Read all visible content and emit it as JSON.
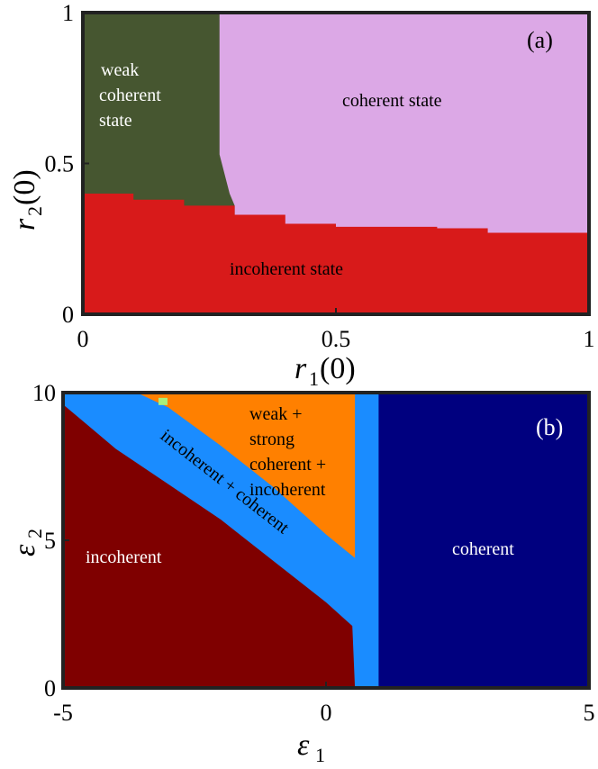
{
  "chart_data": [
    {
      "type": "heatmap",
      "panel_label": "(a)",
      "xlabel": "r",
      "xlabel_sub": "1",
      "xlabel_arg": "(0)",
      "ylabel": "r",
      "ylabel_sub": "2",
      "ylabel_arg": "(0)",
      "xlim": [
        0,
        1
      ],
      "ylim": [
        0,
        1
      ],
      "xticks": [
        "0",
        "0.5",
        "1"
      ],
      "yticks": [
        "0",
        "0.5",
        "1"
      ],
      "colors": {
        "weak": "#465630",
        "coherent": "#dca8e6",
        "incoherent": "#d81a1a"
      },
      "weak_coherent_boundary": [
        [
          0.27,
          1.0
        ],
        [
          0.27,
          0.53
        ],
        [
          0.29,
          0.4
        ],
        [
          0.3,
          0.36
        ]
      ],
      "incoherent_boundary": [
        [
          0.0,
          0.4
        ],
        [
          0.1,
          0.38
        ],
        [
          0.2,
          0.36
        ],
        [
          0.3,
          0.33
        ],
        [
          0.4,
          0.3
        ],
        [
          0.5,
          0.29
        ],
        [
          0.7,
          0.285
        ],
        [
          0.8,
          0.27
        ],
        [
          1.0,
          0.27
        ]
      ],
      "labels": {
        "weak": [
          "weak",
          "coherent",
          "state"
        ],
        "coherent": "coherent state",
        "incoherent": "incoherent state"
      }
    },
    {
      "type": "heatmap",
      "panel_label": "(b)",
      "xlabel": "ε",
      "xlabel_sub": "1",
      "ylabel": "ε",
      "ylabel_sub": "2",
      "xlim": [
        -5,
        5
      ],
      "ylim": [
        0,
        10
      ],
      "xticks": [
        "-5",
        "0",
        "5"
      ],
      "yticks": [
        "0",
        "5",
        "10"
      ],
      "colors": {
        "incoherent": "#7f0000",
        "mixed": "#1a8cff",
        "weak_strong": "#ff8000",
        "coherent": "#00007f",
        "spot": "#a8f07c"
      },
      "incoherent_boundary": [
        [
          -5,
          9.6
        ],
        [
          -4.6,
          9.0
        ],
        [
          -4.0,
          8.1
        ],
        [
          -3.0,
          6.9
        ],
        [
          -2.0,
          5.7
        ],
        [
          -1.0,
          4.3
        ],
        [
          0.0,
          2.9
        ],
        [
          0.5,
          2.1
        ],
        [
          0.55,
          0.0
        ]
      ],
      "mixed_boundary": [
        [
          -3.6,
          10.0
        ],
        [
          -3.0,
          9.5
        ],
        [
          -2.0,
          8.2
        ],
        [
          -1.0,
          6.8
        ],
        [
          0.0,
          5.2
        ],
        [
          0.55,
          4.4
        ]
      ],
      "orange_right_edge": 0.55,
      "coherent_start": 1.0,
      "spot": [
        -3.1,
        9.7
      ],
      "labels": {
        "mixed": "incoherent + coherent",
        "weak_strong": [
          "weak +",
          "strong",
          "coherent +",
          "incoherent"
        ],
        "coherent": "coherent",
        "incoherent": "incoherent"
      }
    }
  ]
}
